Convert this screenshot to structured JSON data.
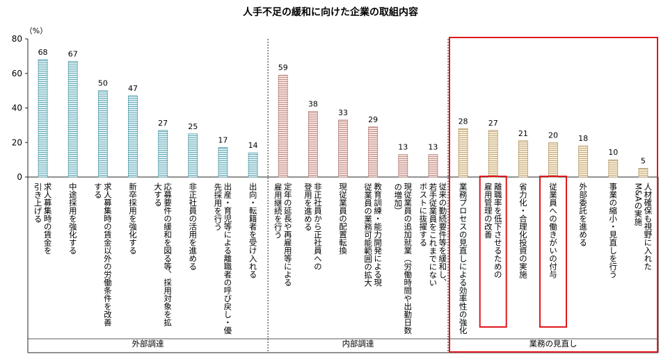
{
  "chart_data": {
    "type": "bar",
    "title": "人手不足の緩和に向けた企業の取組内容",
    "ylabel": "（%）",
    "ylim": [
      0,
      80
    ],
    "yticks": [
      0,
      20,
      40,
      60,
      80
    ],
    "grid": false,
    "categories": [
      [
        "求人募集時の賃金を",
        "引き上げる"
      ],
      [
        "中途採用を強化する"
      ],
      [
        "求人募集時の賃金以外の労働条件を改善",
        "する"
      ],
      [
        "新卒採用を強化する"
      ],
      [
        "応募要件の緩和を図る等、採用対象を拡",
        "大する"
      ],
      [
        "非正社員の活用を進める"
      ],
      [
        "出産・育児等による離職者の呼び戻し・優",
        "先採用を行う"
      ],
      [
        "出向・転籍者を受け入れる"
      ],
      [
        "定年の延長や再雇用等による",
        "雇用継続を行う"
      ],
      [
        "非正社員から正社員への",
        "登用を進める"
      ],
      [
        "現従業員の配置転換"
      ],
      [
        "教育訓練・能力開発による現",
        "従業員の業務可能範囲の拡大"
      ],
      [
        "現従業員の追加就業（労働時間や出勤日数",
        "の増加）"
      ],
      [
        "従来の勤続要件等を緩和し、",
        "若手従業員をこれまでにない",
        "ポストに抜擢する"
      ],
      [
        "業務プロセスの見直しによる効率性の強化"
      ],
      [
        "離職率を低下させるための",
        "雇用管理の改善"
      ],
      [
        "省力化・合理化投資の実施"
      ],
      [
        "従業員への働きがいの付与"
      ],
      [
        "外部委託を進める"
      ],
      [
        "事業の縮小・見直しを行う"
      ],
      [
        "人材確保も視野に入れた",
        "M&Aの実施"
      ]
    ],
    "values": [
      68,
      67,
      50,
      47,
      27,
      25,
      17,
      14,
      59,
      38,
      33,
      29,
      13,
      13,
      28,
      27,
      21,
      20,
      18,
      10,
      5
    ],
    "groups": [
      {
        "name": "外部調達",
        "start": 0,
        "end": 7,
        "fill": "#d9eef2",
        "stroke": "#4f9aa8"
      },
      {
        "name": "内部調達",
        "start": 8,
        "end": 13,
        "fill": "#f6e0dd",
        "stroke": "#b07a73"
      },
      {
        "name": "業務の見直し",
        "start": 14,
        "end": 20,
        "fill": "#f8ecd3",
        "stroke": "#b39766"
      }
    ],
    "highlight_color": "#e0161b",
    "highlighted": [
      15,
      17
    ]
  }
}
